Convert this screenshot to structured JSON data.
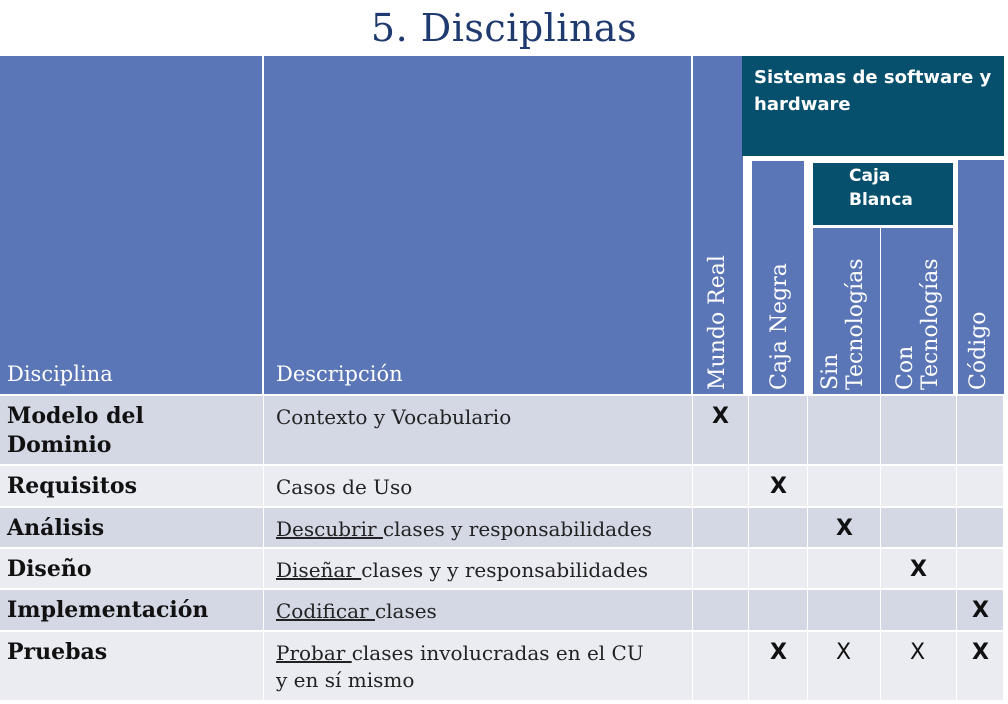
{
  "title": "5. Disciplinas",
  "header": {
    "disciplina": "Disciplina",
    "descripcion": "Descripción",
    "mundo_real": "Mundo Real",
    "caja_negra": "Caja Negra",
    "sin_tec_1": "Sin",
    "sin_tec_2": "Tecnologías",
    "con_tec_1": "Con",
    "con_tec_2": "Tecnologías",
    "codigo": "Código",
    "sistemas_1": "Sistemas de software y",
    "sistemas_2": "hardware",
    "caja_blanca_1": "Caja",
    "caja_blanca_2": "Blanca"
  },
  "rows": [
    {
      "disciplina_1": "Modelo del",
      "disciplina_2": "Dominio",
      "desc_u": "",
      "desc": "Contexto y Vocabulario",
      "desc_2": "",
      "marks": [
        "X",
        "",
        "",
        "",
        "",
        ""
      ]
    },
    {
      "disciplina_1": "Requisitos",
      "disciplina_2": "",
      "desc_u": "",
      "desc": "Casos de Uso",
      "desc_2": "",
      "marks": [
        "",
        "X",
        "",
        "",
        "",
        ""
      ]
    },
    {
      "disciplina_1": "Análisis",
      "disciplina_2": "",
      "desc_u": "Descubrir ",
      "desc": "clases y responsabilidades",
      "desc_2": "",
      "marks": [
        "",
        "",
        "X",
        "",
        "",
        ""
      ]
    },
    {
      "disciplina_1": "Diseño",
      "disciplina_2": "",
      "desc_u": "Diseñar ",
      "desc": "clases y y responsabilidades",
      "desc_2": "",
      "marks": [
        "",
        "",
        "",
        "X",
        "",
        ""
      ]
    },
    {
      "disciplina_1": "Implementación",
      "disciplina_2": "",
      "desc_u": "Codificar ",
      "desc": "clases",
      "desc_2": "",
      "marks": [
        "",
        "",
        "",
        "",
        "",
        "X"
      ]
    },
    {
      "disciplina_1": "Pruebas",
      "disciplina_2": "",
      "desc_u": "Probar ",
      "desc": "clases involucradas en el CU",
      "desc_2": "y en sí mismo",
      "marks": [
        "",
        "X",
        "X",
        "X",
        "",
        "X"
      ]
    }
  ]
}
